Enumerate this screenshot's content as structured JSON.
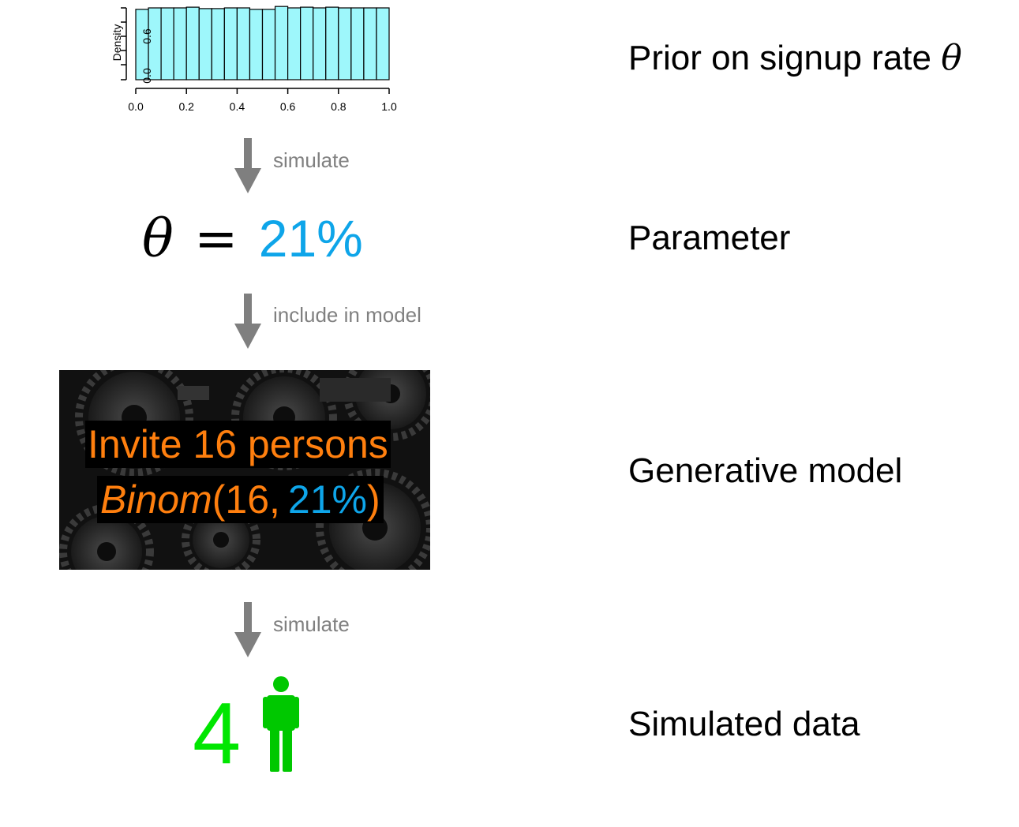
{
  "histogram": {
    "y_axis_label": "Density",
    "y_ticks": [
      "0.0",
      "0.6"
    ],
    "x_ticks": [
      "0.0",
      "0.2",
      "0.4",
      "0.6",
      "0.8",
      "1.0"
    ],
    "bar_color": "#9ef7fb",
    "chart_data": {
      "type": "bar",
      "title": "",
      "xlabel": "",
      "ylabel": "Density",
      "xlim": [
        0,
        1
      ],
      "ylim": [
        0,
        1
      ],
      "bin_edges": [
        0.0,
        0.05,
        0.1,
        0.15,
        0.2,
        0.25,
        0.3,
        0.35,
        0.4,
        0.45,
        0.5,
        0.55,
        0.6,
        0.65,
        0.7,
        0.75,
        0.8,
        0.85,
        0.9,
        0.95,
        1.0
      ],
      "values": [
        0.98,
        1.0,
        1.0,
        1.0,
        1.01,
        0.99,
        0.99,
        1.0,
        1.0,
        0.98,
        0.98,
        1.02,
        1.0,
        1.01,
        1.0,
        1.01,
        1.0,
        1.0,
        1.0,
        1.0
      ]
    }
  },
  "steps": {
    "simulate_1": "simulate",
    "include": "include in model",
    "simulate_2": "simulate"
  },
  "parameter": {
    "symbol": "θ",
    "equals": "=",
    "value": "21%",
    "value_color": "#0ea5e9"
  },
  "model": {
    "line1": "Invite 16 persons",
    "binom_name": "Binom",
    "binom_open": "(16,",
    "binom_value": "21%",
    "binom_close": ")",
    "text_color": "#ff7f0e"
  },
  "result": {
    "count": "4",
    "color": "#00e600",
    "icon": "person-icon",
    "icon_color": "#00c800"
  },
  "labels": {
    "prior_text": "Prior on signup rate",
    "prior_symbol": "θ",
    "parameter": "Parameter",
    "generative": "Generative model",
    "simulated": "Simulated data"
  }
}
